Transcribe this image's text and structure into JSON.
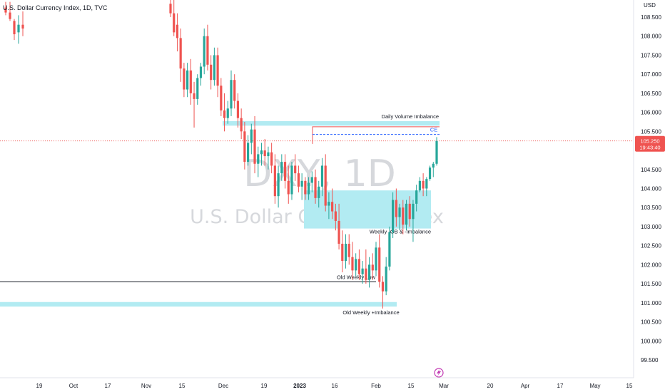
{
  "header": {
    "title": "U.S. Dollar Currency Index, 1D, TVC",
    "currency": "USD"
  },
  "watermark": {
    "symbol": "DXY, 1D",
    "name": "U.S. Dollar Currency Index"
  },
  "price_tag": {
    "price": "105.250",
    "countdown": "19:43:40",
    "value": 105.25
  },
  "colors": {
    "up": "#26a69a",
    "down": "#ef5350",
    "zone": "#b2ebf2",
    "price_line": "#ef5350",
    "ce_line": "#2962ff",
    "tag_bg": "#ef5350"
  },
  "chart_data": {
    "type": "candlestick",
    "y_axis": {
      "position": "right",
      "range": [
        99.3,
        108.95
      ],
      "ticks": [
        "108.500",
        "108.000",
        "107.500",
        "107.000",
        "106.500",
        "106.000",
        "105.500",
        "104.500",
        "104.000",
        "103.500",
        "103.000",
        "102.500",
        "102.000",
        "101.500",
        "101.000",
        "100.500",
        "100.000",
        "99.500"
      ]
    },
    "x_axis": {
      "ticks": [
        "19",
        "Oct",
        "17",
        "Nov",
        "15",
        "Dec",
        "19",
        "2023",
        "16",
        "Feb",
        "15",
        "Mar",
        "20",
        "Apr",
        "17",
        "May",
        "15"
      ]
    },
    "candles": [
      {
        "o": 108.75,
        "h": 108.9,
        "l": 108.55,
        "c": 108.62
      },
      {
        "o": 108.62,
        "h": 108.9,
        "l": 108.4,
        "c": 108.45
      },
      {
        "o": 108.4,
        "h": 108.45,
        "l": 107.9,
        "c": 108.05
      },
      {
        "o": 108.1,
        "h": 108.55,
        "l": 107.8,
        "c": 108.3
      },
      {
        "o": 108.3,
        "h": 108.65,
        "l": 108.0,
        "c": 108.2
      },
      {
        "o": 108.85,
        "h": 108.95,
        "l": 108.5,
        "c": 108.6
      },
      {
        "o": 108.6,
        "h": 108.95,
        "l": 108.0,
        "c": 108.1
      },
      {
        "o": 108.3,
        "h": 108.6,
        "l": 107.6,
        "c": 107.95
      },
      {
        "o": 107.95,
        "h": 108.2,
        "l": 106.8,
        "c": 107.15
      },
      {
        "o": 107.15,
        "h": 107.3,
        "l": 106.4,
        "c": 106.6
      },
      {
        "o": 106.6,
        "h": 107.3,
        "l": 106.4,
        "c": 107.1
      },
      {
        "o": 107.1,
        "h": 107.4,
        "l": 106.2,
        "c": 106.5
      },
      {
        "o": 106.5,
        "h": 106.8,
        "l": 105.6,
        "c": 106.35
      },
      {
        "o": 106.35,
        "h": 107.0,
        "l": 106.2,
        "c": 106.9
      },
      {
        "o": 106.9,
        "h": 107.3,
        "l": 106.7,
        "c": 107.2
      },
      {
        "o": 107.2,
        "h": 108.2,
        "l": 107.0,
        "c": 108.0
      },
      {
        "o": 108.0,
        "h": 108.3,
        "l": 107.1,
        "c": 107.25
      },
      {
        "o": 107.25,
        "h": 107.5,
        "l": 106.6,
        "c": 106.85
      },
      {
        "o": 106.85,
        "h": 107.7,
        "l": 106.7,
        "c": 107.5
      },
      {
        "o": 107.5,
        "h": 107.7,
        "l": 106.4,
        "c": 106.7
      },
      {
        "o": 106.7,
        "h": 106.9,
        "l": 105.9,
        "c": 106.05
      },
      {
        "o": 106.05,
        "h": 106.5,
        "l": 105.5,
        "c": 105.85
      },
      {
        "o": 105.85,
        "h": 106.3,
        "l": 105.7,
        "c": 106.1
      },
      {
        "o": 106.1,
        "h": 107.1,
        "l": 105.9,
        "c": 106.85
      },
      {
        "o": 106.85,
        "h": 107.0,
        "l": 106.1,
        "c": 106.3
      },
      {
        "o": 106.3,
        "h": 106.5,
        "l": 105.6,
        "c": 105.85
      },
      {
        "o": 105.85,
        "h": 106.1,
        "l": 105.3,
        "c": 105.5
      },
      {
        "o": 105.5,
        "h": 105.75,
        "l": 104.5,
        "c": 104.7
      },
      {
        "o": 104.7,
        "h": 105.4,
        "l": 104.6,
        "c": 105.2
      },
      {
        "o": 105.2,
        "h": 105.7,
        "l": 104.9,
        "c": 105.55
      },
      {
        "o": 105.55,
        "h": 105.9,
        "l": 104.4,
        "c": 104.65
      },
      {
        "o": 104.65,
        "h": 105.1,
        "l": 104.3,
        "c": 104.9
      },
      {
        "o": 104.9,
        "h": 105.2,
        "l": 104.6,
        "c": 105.0
      },
      {
        "o": 105.0,
        "h": 105.3,
        "l": 104.6,
        "c": 104.85
      },
      {
        "o": 104.85,
        "h": 105.1,
        "l": 104.5,
        "c": 104.95
      },
      {
        "o": 104.95,
        "h": 105.2,
        "l": 104.4,
        "c": 104.6
      },
      {
        "o": 104.6,
        "h": 104.9,
        "l": 103.6,
        "c": 103.8
      },
      {
        "o": 103.8,
        "h": 104.6,
        "l": 103.5,
        "c": 104.4
      },
      {
        "o": 104.4,
        "h": 104.9,
        "l": 104.2,
        "c": 104.7
      },
      {
        "o": 104.7,
        "h": 104.9,
        "l": 104.0,
        "c": 104.2
      },
      {
        "o": 104.2,
        "h": 104.6,
        "l": 103.6,
        "c": 103.85
      },
      {
        "o": 103.85,
        "h": 104.7,
        "l": 103.7,
        "c": 104.6
      },
      {
        "o": 104.6,
        "h": 104.9,
        "l": 104.2,
        "c": 104.4
      },
      {
        "o": 104.4,
        "h": 104.6,
        "l": 103.9,
        "c": 104.05
      },
      {
        "o": 104.05,
        "h": 104.4,
        "l": 103.7,
        "c": 104.2
      },
      {
        "o": 104.2,
        "h": 104.3,
        "l": 103.7,
        "c": 103.85
      },
      {
        "o": 103.85,
        "h": 104.3,
        "l": 103.7,
        "c": 104.15
      },
      {
        "o": 104.15,
        "h": 104.45,
        "l": 103.9,
        "c": 104.3
      },
      {
        "o": 104.3,
        "h": 104.5,
        "l": 103.6,
        "c": 103.75
      },
      {
        "o": 103.75,
        "h": 104.2,
        "l": 103.5,
        "c": 104.05
      },
      {
        "o": 104.05,
        "h": 104.8,
        "l": 103.8,
        "c": 104.6
      },
      {
        "o": 104.6,
        "h": 104.9,
        "l": 103.4,
        "c": 103.55
      },
      {
        "o": 103.55,
        "h": 103.9,
        "l": 103.2,
        "c": 103.65
      },
      {
        "o": 103.65,
        "h": 104.0,
        "l": 103.2,
        "c": 103.4
      },
      {
        "o": 103.4,
        "h": 103.6,
        "l": 102.9,
        "c": 103.15
      },
      {
        "o": 103.15,
        "h": 103.6,
        "l": 102.4,
        "c": 102.55
      },
      {
        "o": 102.55,
        "h": 102.9,
        "l": 101.8,
        "c": 102.1
      },
      {
        "o": 102.1,
        "h": 102.8,
        "l": 101.9,
        "c": 102.55
      },
      {
        "o": 102.55,
        "h": 102.8,
        "l": 102.0,
        "c": 102.2
      },
      {
        "o": 102.2,
        "h": 102.6,
        "l": 101.6,
        "c": 101.85
      },
      {
        "o": 101.85,
        "h": 102.3,
        "l": 101.7,
        "c": 102.15
      },
      {
        "o": 102.15,
        "h": 102.4,
        "l": 101.6,
        "c": 101.75
      },
      {
        "o": 101.75,
        "h": 102.1,
        "l": 101.5,
        "c": 101.9
      },
      {
        "o": 101.9,
        "h": 102.4,
        "l": 101.5,
        "c": 101.6
      },
      {
        "o": 101.6,
        "h": 102.2,
        "l": 101.4,
        "c": 102.0
      },
      {
        "o": 102.0,
        "h": 102.3,
        "l": 101.6,
        "c": 101.85
      },
      {
        "o": 101.85,
        "h": 102.6,
        "l": 101.7,
        "c": 102.45
      },
      {
        "o": 102.45,
        "h": 102.8,
        "l": 101.4,
        "c": 101.55
      },
      {
        "o": 101.55,
        "h": 101.7,
        "l": 100.85,
        "c": 101.3
      },
      {
        "o": 101.3,
        "h": 102.2,
        "l": 101.2,
        "c": 101.95
      },
      {
        "o": 101.95,
        "h": 103.0,
        "l": 101.85,
        "c": 102.85
      },
      {
        "o": 102.85,
        "h": 103.9,
        "l": 102.7,
        "c": 103.7
      },
      {
        "o": 103.7,
        "h": 104.0,
        "l": 103.0,
        "c": 103.25
      },
      {
        "o": 103.25,
        "h": 103.6,
        "l": 102.9,
        "c": 103.5
      },
      {
        "o": 103.5,
        "h": 103.7,
        "l": 102.8,
        "c": 103.05
      },
      {
        "o": 103.05,
        "h": 103.7,
        "l": 102.9,
        "c": 103.6
      },
      {
        "o": 103.6,
        "h": 103.8,
        "l": 103.0,
        "c": 103.2
      },
      {
        "o": 103.2,
        "h": 103.7,
        "l": 102.6,
        "c": 103.6
      },
      {
        "o": 103.6,
        "h": 104.1,
        "l": 103.4,
        "c": 103.95
      },
      {
        "o": 103.95,
        "h": 104.3,
        "l": 103.9,
        "c": 104.2
      },
      {
        "o": 104.2,
        "h": 104.4,
        "l": 103.8,
        "c": 104.0
      },
      {
        "o": 104.0,
        "h": 104.3,
        "l": 103.8,
        "c": 104.25
      },
      {
        "o": 104.25,
        "h": 104.6,
        "l": 104.2,
        "c": 104.55
      },
      {
        "o": 104.55,
        "h": 104.7,
        "l": 104.3,
        "c": 104.65
      },
      {
        "o": 104.65,
        "h": 105.35,
        "l": 104.6,
        "c": 105.25
      }
    ],
    "annotations": [
      {
        "label": "Daily Volume Imbalance",
        "zone": [
          105.65,
          105.77
        ]
      },
      {
        "label": "Weekly -OB & -Imbalance",
        "zone": [
          102.95,
          103.95
        ]
      },
      {
        "label": "Old Weekly Low",
        "level": 101.55
      },
      {
        "label": "Old Weekly +Imbalance",
        "zone": [
          100.9,
          101.02
        ]
      },
      {
        "label": "CE",
        "level": 105.42
      }
    ],
    "last_price": 105.25,
    "grid": false
  }
}
